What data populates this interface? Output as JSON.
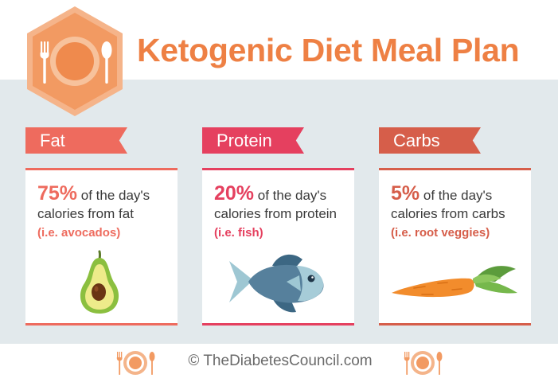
{
  "header": {
    "title": "Ketogenic Diet Meal Plan",
    "logo_icon": "plate-fork-spoon-icon",
    "accent_color": "#ee8044"
  },
  "sections": [
    {
      "ribbon_label": "Fat",
      "percent": "75%",
      "text_line1": " of the day's",
      "text_line2": "calories from fat",
      "example": "(i.e. avocados)",
      "color": "#ee6b5e",
      "icon": "avocado-icon"
    },
    {
      "ribbon_label": "Protein",
      "percent": "20%",
      "text_line1": " of the day's",
      "text_line2": "calories from protein",
      "example": "(i.e. fish)",
      "color": "#e5405f",
      "icon": "fish-icon"
    },
    {
      "ribbon_label": "Carbs",
      "percent": "5%",
      "text_line1": " of the day's",
      "text_line2": "calories from carbs",
      "example": "(i.e. root veggies)",
      "color": "#d65e4a",
      "icon": "carrot-icon"
    }
  ],
  "footer": {
    "copyright": "© TheDiabetesCouncil.com",
    "icon": "plate-cutlery-icon"
  }
}
